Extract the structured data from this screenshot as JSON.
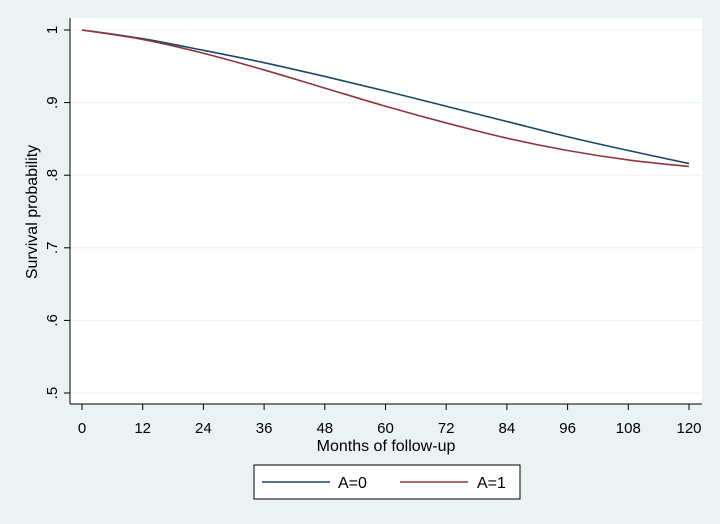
{
  "chart_data": {
    "type": "line",
    "title": "",
    "xlabel": "Months of follow-up",
    "ylabel": "Survival probability",
    "xlim": [
      0,
      120
    ],
    "ylim": [
      0.5,
      1.0
    ],
    "xticks": [
      0,
      12,
      24,
      36,
      48,
      60,
      72,
      84,
      96,
      108,
      120
    ],
    "xtick_labels": [
      "0",
      "12",
      "24",
      "36",
      "48",
      "60",
      "72",
      "84",
      "96",
      "108",
      "120"
    ],
    "yticks": [
      0.5,
      0.6,
      0.7,
      0.8,
      0.9,
      1.0
    ],
    "ytick_labels": [
      ".5",
      ".6",
      ".7",
      ".8",
      ".9",
      "1"
    ],
    "grid": true,
    "legend_position": "bottom",
    "series": [
      {
        "name": "A=0",
        "color": "#1a476f",
        "x": [
          0,
          12,
          24,
          36,
          48,
          60,
          72,
          84,
          96,
          108,
          120
        ],
        "y": [
          1.0,
          0.988,
          0.972,
          0.955,
          0.936,
          0.916,
          0.895,
          0.874,
          0.853,
          0.834,
          0.816
        ]
      },
      {
        "name": "A=1",
        "color": "#90353b",
        "x": [
          0,
          12,
          24,
          36,
          48,
          60,
          72,
          84,
          96,
          108,
          120
        ],
        "y": [
          1.0,
          0.987,
          0.968,
          0.945,
          0.92,
          0.895,
          0.872,
          0.851,
          0.834,
          0.821,
          0.812
        ]
      }
    ]
  },
  "colors": {
    "background": "#eaf2f3",
    "plot_background": "#ffffff",
    "grid": "#eaf2f3"
  }
}
